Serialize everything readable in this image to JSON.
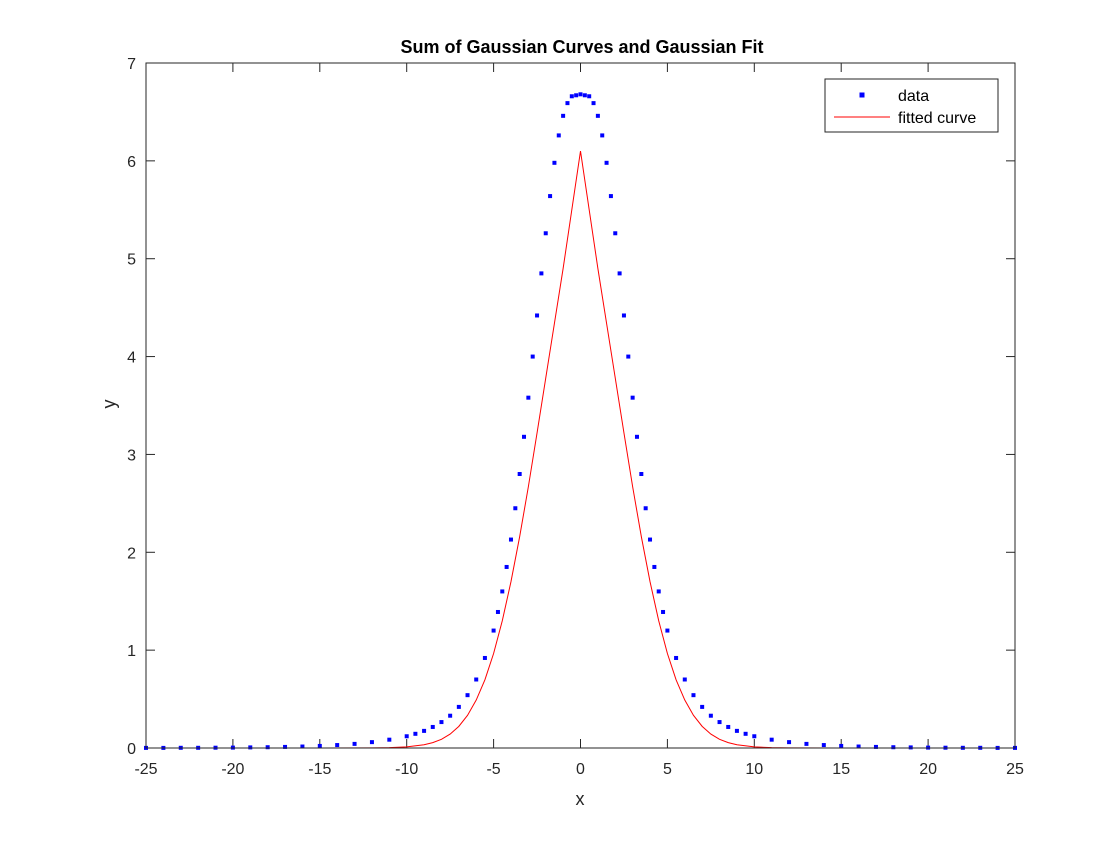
{
  "chart_data": {
    "type": "scatter",
    "title": "Sum of Gaussian Curves and Gaussian Fit",
    "xlabel": "x",
    "ylabel": "y",
    "xlim": [
      -25,
      25
    ],
    "ylim": [
      0,
      7
    ],
    "x_ticks": [
      -25,
      -20,
      -15,
      -10,
      -5,
      0,
      5,
      10,
      15,
      20,
      25
    ],
    "y_ticks": [
      0,
      1,
      2,
      3,
      4,
      5,
      6,
      7
    ],
    "grid": false,
    "legend_position": "top-right",
    "series": [
      {
        "name": "data",
        "kind": "markers",
        "color": "#0000ff",
        "x": [
          -25,
          -24,
          -23,
          -22,
          -21,
          -20,
          -19,
          -18,
          -17,
          -16,
          -15,
          -14,
          -13,
          -12,
          -11,
          -10,
          -9.5,
          -9,
          -8.5,
          -8,
          -7.5,
          -7,
          -6.5,
          -6,
          -5.5,
          -5,
          -4.75,
          -4.5,
          -4.25,
          -4,
          -3.75,
          -3.5,
          -3.25,
          -3,
          -2.75,
          -2.5,
          -2.25,
          -2,
          -1.75,
          -1.5,
          -1.25,
          -1,
          -0.75,
          -0.5,
          -0.25,
          0,
          0.25,
          0.5,
          0.75,
          1,
          1.25,
          1.5,
          1.75,
          2,
          2.25,
          2.5,
          2.75,
          3,
          3.25,
          3.5,
          3.75,
          4,
          4.25,
          4.5,
          4.75,
          5,
          5.5,
          6,
          6.5,
          7,
          7.5,
          8,
          8.5,
          9,
          9.5,
          10,
          11,
          12,
          13,
          14,
          15,
          16,
          17,
          18,
          19,
          20,
          21,
          22,
          23,
          24,
          25
        ],
        "y": [
          0.001,
          0.001,
          0.002,
          0.002,
          0.003,
          0.004,
          0.006,
          0.008,
          0.011,
          0.015,
          0.021,
          0.03,
          0.042,
          0.06,
          0.085,
          0.12,
          0.145,
          0.175,
          0.215,
          0.265,
          0.33,
          0.42,
          0.54,
          0.7,
          0.92,
          1.2,
          1.39,
          1.6,
          1.85,
          2.13,
          2.45,
          2.8,
          3.18,
          3.58,
          4.0,
          4.42,
          4.85,
          5.26,
          5.64,
          5.98,
          6.26,
          6.46,
          6.59,
          6.66,
          6.67,
          6.68,
          6.67,
          6.66,
          6.59,
          6.46,
          6.26,
          5.98,
          5.64,
          5.26,
          4.85,
          4.42,
          4.0,
          3.58,
          3.18,
          2.8,
          2.45,
          2.13,
          1.85,
          1.6,
          1.39,
          1.2,
          0.92,
          0.7,
          0.54,
          0.42,
          0.33,
          0.265,
          0.215,
          0.175,
          0.145,
          0.12,
          0.085,
          0.06,
          0.042,
          0.03,
          0.021,
          0.015,
          0.011,
          0.008,
          0.006,
          0.004,
          0.003,
          0.002,
          0.002,
          0.001,
          0.001
        ]
      },
      {
        "name": "fitted curve",
        "kind": "line",
        "color": "#ff0000",
        "x": [
          -25,
          -15,
          -12,
          -11,
          -10,
          -9,
          -8.5,
          -8,
          -7.5,
          -7,
          -6.5,
          -6,
          -5.5,
          -5,
          -4.5,
          -4,
          -3.5,
          -3,
          -2.5,
          -2,
          -1.5,
          -1,
          -0.5,
          0,
          0.5,
          1,
          1.5,
          2,
          2.5,
          3,
          3.5,
          4,
          4.5,
          5,
          5.5,
          6,
          6.5,
          7,
          7.5,
          8,
          8.5,
          9,
          10,
          11,
          12,
          15,
          25
        ],
        "y": [
          0,
          0,
          0.001,
          0.004,
          0.011,
          0.033,
          0.055,
          0.089,
          0.142,
          0.221,
          0.334,
          0.49,
          0.697,
          0.966,
          1.3,
          1.7,
          2.16,
          2.67,
          3.22,
          3.78,
          4.34,
          4.9,
          5.5,
          6.1,
          5.5,
          4.9,
          4.34,
          3.78,
          3.22,
          2.67,
          2.16,
          1.7,
          1.3,
          0.966,
          0.697,
          0.49,
          0.334,
          0.221,
          0.142,
          0.089,
          0.055,
          0.033,
          0.011,
          0.004,
          0.001,
          0,
          0
        ]
      }
    ]
  }
}
